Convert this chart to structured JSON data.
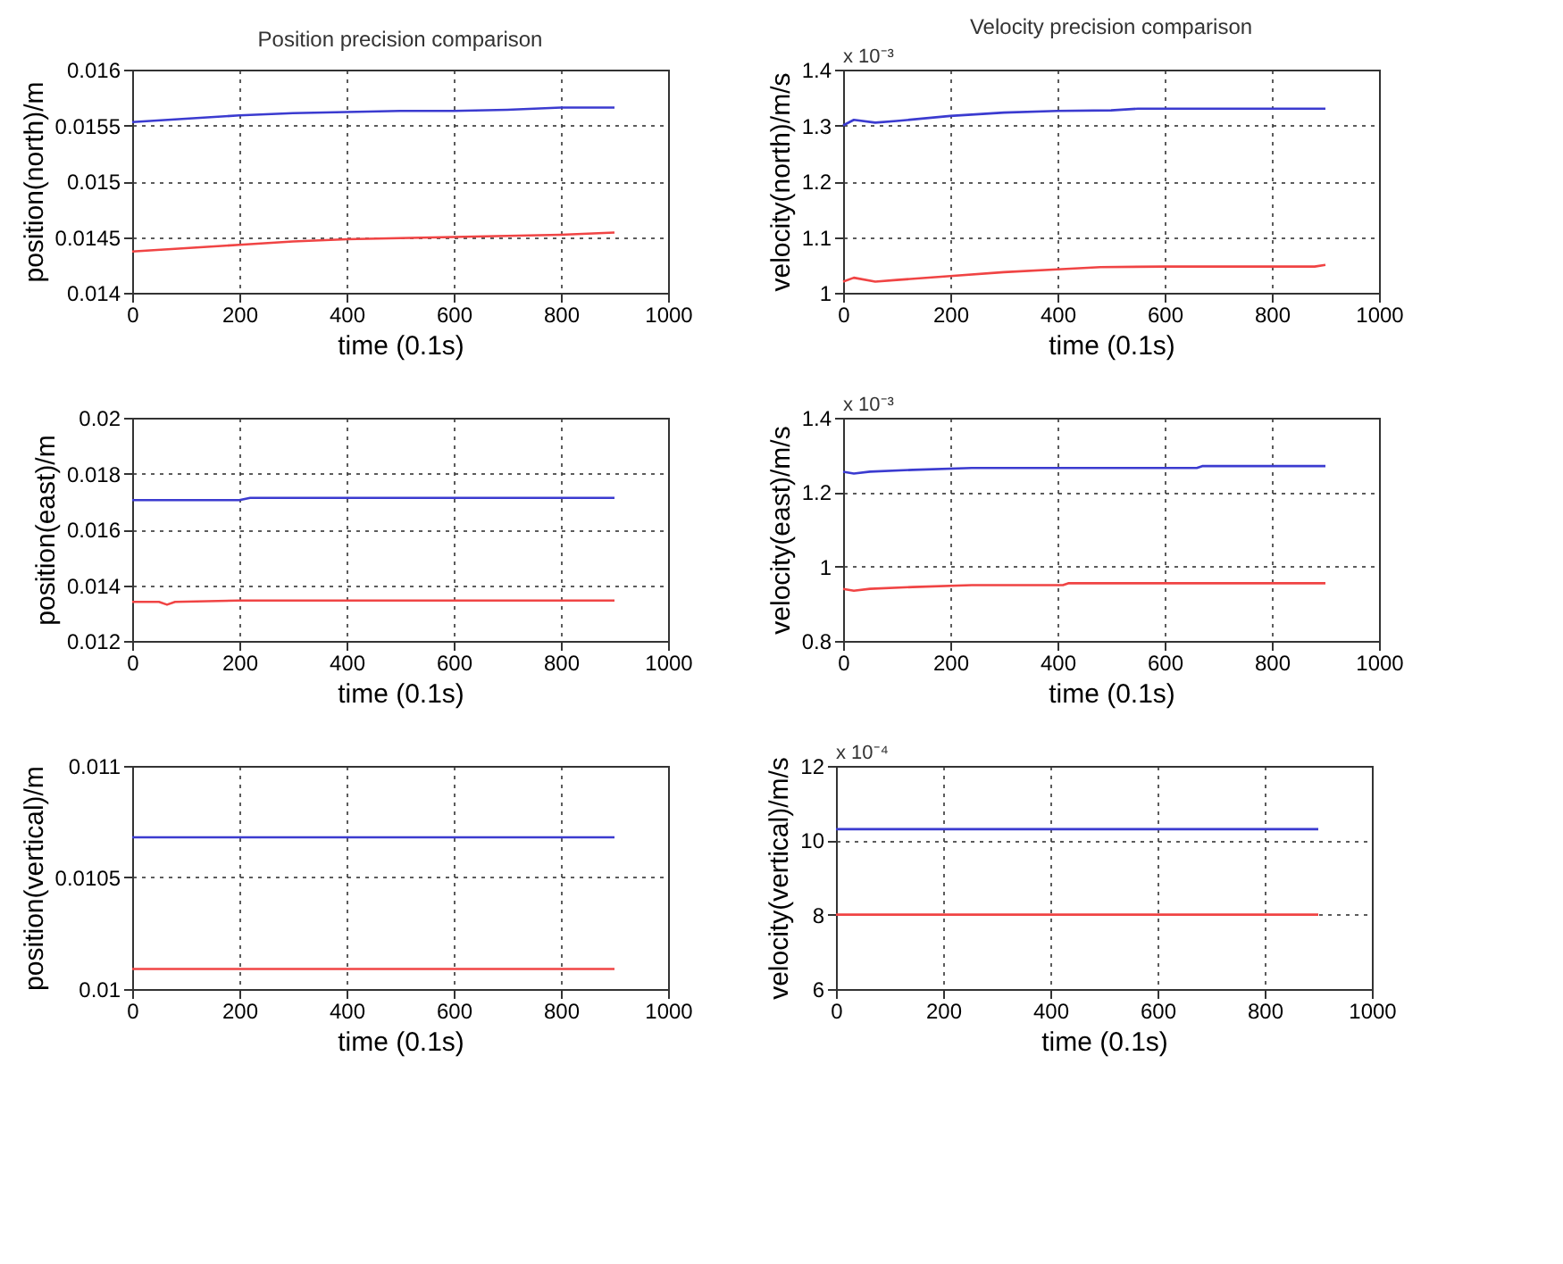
{
  "chart_data": [
    {
      "type": "line",
      "title": "Position precision comparison",
      "xlabel": "time (0.1s)",
      "ylabel": "position(north)/m",
      "xlim": [
        0,
        1000
      ],
      "xticks": [
        0,
        200,
        400,
        600,
        800,
        1000
      ],
      "ylim": [
        0.014,
        0.016
      ],
      "yticks": [
        0.014,
        0.0145,
        0.015,
        0.0155,
        0.016
      ],
      "grid": true,
      "line_style": "solid",
      "series": [
        {
          "color": "#3b3bd0",
          "x": [
            0,
            100,
            200,
            300,
            400,
            500,
            600,
            700,
            800,
            900
          ],
          "values": [
            0.01553,
            0.01556,
            0.01559,
            0.01561,
            0.01562,
            0.01563,
            0.01563,
            0.01564,
            0.01566,
            0.01566
          ]
        },
        {
          "color": "#f04444",
          "x": [
            0,
            100,
            200,
            300,
            400,
            500,
            600,
            700,
            800,
            900
          ],
          "values": [
            0.01437,
            0.0144,
            0.01443,
            0.01446,
            0.01448,
            0.01449,
            0.0145,
            0.01451,
            0.01452,
            0.01454
          ]
        }
      ]
    },
    {
      "type": "line",
      "title": "Velocity precision comparison",
      "xlabel": "time (0.1s)",
      "ylabel": "velocity(north)/m/s",
      "annotations": [
        "x 10⁻³"
      ],
      "xlim": [
        0,
        1000
      ],
      "xticks": [
        0,
        200,
        400,
        600,
        800,
        1000
      ],
      "ylim": [
        1,
        1.4
      ],
      "yticks": [
        1,
        1.1,
        1.2,
        1.3,
        1.4
      ],
      "grid": true,
      "line_style": "solid",
      "series": [
        {
          "color": "#3b3bd0",
          "x": [
            0,
            20,
            60,
            100,
            200,
            300,
            400,
            500,
            550,
            700,
            900
          ],
          "values": [
            1.3,
            1.31,
            1.305,
            1.308,
            1.317,
            1.323,
            1.326,
            1.327,
            1.33,
            1.33,
            1.33
          ]
        },
        {
          "color": "#f04444",
          "x": [
            0,
            20,
            60,
            100,
            200,
            300,
            400,
            480,
            600,
            880,
            900
          ],
          "values": [
            1.02,
            1.027,
            1.02,
            1.023,
            1.03,
            1.037,
            1.042,
            1.046,
            1.047,
            1.047,
            1.05
          ]
        }
      ]
    },
    {
      "type": "line",
      "xlabel": "time (0.1s)",
      "ylabel": "position(east)/m",
      "xlim": [
        0,
        1000
      ],
      "xticks": [
        0,
        200,
        400,
        600,
        800,
        1000
      ],
      "ylim": [
        0.012,
        0.02
      ],
      "yticks": [
        0.012,
        0.014,
        0.016,
        0.018,
        0.02
      ],
      "grid": true,
      "line_style": "solid",
      "series": [
        {
          "color": "#3b3bd0",
          "x": [
            0,
            200,
            220,
            400,
            600,
            900
          ],
          "values": [
            0.01705,
            0.01705,
            0.01713,
            0.01713,
            0.01713,
            0.01713
          ]
        },
        {
          "color": "#f04444",
          "x": [
            0,
            50,
            65,
            80,
            200,
            400,
            600,
            900
          ],
          "values": [
            0.0134,
            0.0134,
            0.0133,
            0.0134,
            0.01345,
            0.01345,
            0.01345,
            0.01345
          ]
        }
      ]
    },
    {
      "type": "line",
      "xlabel": "time (0.1s)",
      "ylabel": "velocity(east)/m/s",
      "annotations": [
        "x 10⁻³"
      ],
      "xlim": [
        0,
        1000
      ],
      "xticks": [
        0,
        200,
        400,
        600,
        800,
        1000
      ],
      "ylim": [
        0.8,
        1.4
      ],
      "yticks": [
        0.8,
        1,
        1.2,
        1.4
      ],
      "grid": true,
      "line_style": "solid",
      "series": [
        {
          "color": "#3b3bd0",
          "x": [
            0,
            20,
            50,
            130,
            240,
            660,
            670,
            900
          ],
          "values": [
            1.255,
            1.25,
            1.255,
            1.26,
            1.265,
            1.265,
            1.27,
            1.27
          ]
        },
        {
          "color": "#f04444",
          "x": [
            0,
            20,
            50,
            130,
            240,
            410,
            420,
            900
          ],
          "values": [
            0.94,
            0.935,
            0.94,
            0.945,
            0.95,
            0.95,
            0.955,
            0.955
          ]
        }
      ]
    },
    {
      "type": "line",
      "xlabel": "time (0.1s)",
      "ylabel": "position(vertical)/m",
      "xlim": [
        0,
        1000
      ],
      "xticks": [
        0,
        200,
        400,
        600,
        800,
        1000
      ],
      "ylim": [
        0.01,
        0.011
      ],
      "yticks": [
        0.01,
        0.0105,
        0.011
      ],
      "grid": true,
      "line_style": "solid",
      "series": [
        {
          "color": "#3b3bd0",
          "x": [
            0,
            900
          ],
          "values": [
            0.01068,
            0.01068
          ]
        },
        {
          "color": "#f04444",
          "x": [
            0,
            900
          ],
          "values": [
            0.01009,
            0.01009
          ]
        }
      ]
    },
    {
      "type": "line",
      "xlabel": "time (0.1s)",
      "ylabel": "velocity(vertical)/m/s",
      "annotations": [
        "x 10⁻⁴"
      ],
      "xlim": [
        0,
        1000
      ],
      "xticks": [
        0,
        200,
        400,
        600,
        800,
        1000
      ],
      "ylim": [
        6,
        12
      ],
      "yticks": [
        6,
        8,
        10,
        12
      ],
      "grid": true,
      "line_style": "solid",
      "series": [
        {
          "color": "#3b3bd0",
          "x": [
            0,
            900
          ],
          "values": [
            10.3,
            10.3
          ]
        },
        {
          "color": "#f04444",
          "x": [
            0,
            900
          ],
          "values": [
            8,
            8
          ]
        }
      ]
    }
  ]
}
